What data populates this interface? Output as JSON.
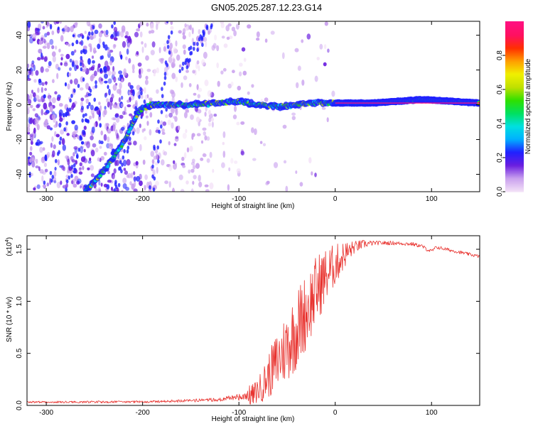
{
  "figure": {
    "title": "GN05.2025.287.12.23.G14"
  },
  "chart_data": [
    {
      "type": "heatmap",
      "title": "GN05.2025.287.12.23.G14",
      "xlabel": "Height of straight line (km)",
      "ylabel": "Frequency (Hz)",
      "xlim": [
        -320,
        150
      ],
      "ylim": [
        -50,
        48
      ],
      "x_ticks": [
        -300,
        -200,
        -100,
        0,
        100
      ],
      "x_tick_labels": [
        "-300",
        "-200",
        "-100",
        "0",
        "100"
      ],
      "y_ticks": [
        -40,
        -20,
        0,
        20,
        40
      ],
      "y_tick_labels": [
        "-40",
        "-20",
        "0",
        "20",
        "40"
      ],
      "colorbar": {
        "label": "Normalized spectral amplitude",
        "range": [
          0,
          1
        ],
        "ticks": [
          0.0,
          0.2,
          0.4,
          0.6,
          0.8
        ],
        "tick_labels": [
          "0.0",
          "0.2",
          "0.4",
          "0.6",
          "0.8"
        ],
        "colors": [
          "#f2e0f7",
          "#c9a0ee",
          "#6a1ee0",
          "#2020ff",
          "#00b0ff",
          "#00e0e0",
          "#00e060",
          "#30e000",
          "#c0e000",
          "#f0f000",
          "#ffa000",
          "#ff3000",
          "#ff1060",
          "#ff1080"
        ]
      },
      "ridge": [
        {
          "x": -260,
          "y": -50
        },
        {
          "x": -240,
          "y": -38
        },
        {
          "x": -220,
          "y": -22
        },
        {
          "x": -205,
          "y": -5
        },
        {
          "x": -200,
          "y": -2
        },
        {
          "x": -190,
          "y": 0
        },
        {
          "x": -150,
          "y": 0
        },
        {
          "x": -120,
          "y": 1
        },
        {
          "x": -100,
          "y": 2
        },
        {
          "x": -80,
          "y": 0
        },
        {
          "x": -60,
          "y": -1
        },
        {
          "x": -40,
          "y": 0
        },
        {
          "x": -20,
          "y": 1
        },
        {
          "x": 0,
          "y": 1
        },
        {
          "x": 40,
          "y": 1
        },
        {
          "x": 90,
          "y": 3
        },
        {
          "x": 150,
          "y": 1
        }
      ],
      "ridge_amplitude": [
        {
          "x": -320,
          "a": 0.3
        },
        {
          "x": -200,
          "a": 0.4
        },
        {
          "x": -100,
          "a": 0.5
        },
        {
          "x": -40,
          "a": 0.65
        },
        {
          "x": 0,
          "a": 0.8
        },
        {
          "x": 30,
          "a": 0.9
        },
        {
          "x": 80,
          "a": 0.95
        },
        {
          "x": 150,
          "a": 0.9
        }
      ]
    },
    {
      "type": "line",
      "xlabel": "Height of straight line (km)",
      "ylabel": "SNR (10 * v/v)",
      "y_multiplier_label": "(x10",
      "y_multiplier_exp": "4",
      "xlim": [
        -320,
        150
      ],
      "ylim": [
        0,
        1.63
      ],
      "x_ticks": [
        -300,
        -200,
        -100,
        0,
        100
      ],
      "x_tick_labels": [
        "-300",
        "-200",
        "-100",
        "0",
        "100"
      ],
      "y_ticks": [
        0.0,
        0.5,
        1.0,
        1.5
      ],
      "y_tick_labels": [
        "0.0",
        "0.5",
        "1.0",
        "1.5"
      ],
      "color": "#e8322e",
      "series": [
        {
          "name": "SNR",
          "x": [
            -320,
            -250,
            -200,
            -150,
            -120,
            -100,
            -85,
            -75,
            -65,
            -55,
            -45,
            -35,
            -25,
            -15,
            -5,
            0,
            10,
            20,
            30,
            40,
            60,
            80,
            90,
            95,
            100,
            105,
            120,
            150
          ],
          "y": [
            0.03,
            0.03,
            0.03,
            0.04,
            0.05,
            0.07,
            0.1,
            0.2,
            0.35,
            0.5,
            0.65,
            0.82,
            1.0,
            1.18,
            1.3,
            1.35,
            1.45,
            1.52,
            1.55,
            1.56,
            1.56,
            1.55,
            1.53,
            1.5,
            1.48,
            1.52,
            1.49,
            1.43
          ]
        }
      ],
      "noise_envelope": [
        {
          "x": -320,
          "amp": 0.02
        },
        {
          "x": -180,
          "amp": 0.025
        },
        {
          "x": -120,
          "amp": 0.04
        },
        {
          "x": -80,
          "amp": 0.12
        },
        {
          "x": -60,
          "amp": 0.3
        },
        {
          "x": -40,
          "amp": 0.4
        },
        {
          "x": -20,
          "amp": 0.35
        },
        {
          "x": 0,
          "amp": 0.2
        },
        {
          "x": 20,
          "amp": 0.06
        },
        {
          "x": 40,
          "amp": 0.02
        },
        {
          "x": 150,
          "amp": 0.015
        }
      ]
    }
  ]
}
